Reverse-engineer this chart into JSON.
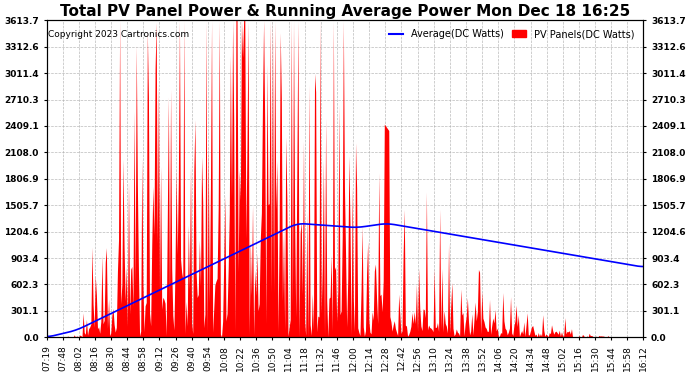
{
  "title": "Total PV Panel Power & Running Average Power Mon Dec 18 16:25",
  "copyright": "Copyright 2023 Cartronics.com",
  "legend_avg": "Average(DC Watts)",
  "legend_pv": "PV Panels(DC Watts)",
  "yticks": [
    0.0,
    301.1,
    602.3,
    903.4,
    1204.6,
    1505.7,
    1806.9,
    2108.0,
    2409.1,
    2710.3,
    3011.4,
    3312.6,
    3613.7
  ],
  "ymax": 3613.7,
  "bg_color": "#ffffff",
  "plot_bg": "#ffffff",
  "pv_color": "#ff0000",
  "avg_color": "#0000ff",
  "xtick_labels": [
    "07:19",
    "07:48",
    "08:02",
    "08:16",
    "08:30",
    "08:44",
    "08:58",
    "09:12",
    "09:26",
    "09:40",
    "09:54",
    "10:08",
    "10:22",
    "10:36",
    "10:50",
    "11:04",
    "11:18",
    "11:32",
    "11:46",
    "12:00",
    "12:14",
    "12:28",
    "12:42",
    "12:56",
    "13:10",
    "13:24",
    "13:38",
    "13:52",
    "14:06",
    "14:20",
    "14:34",
    "14:48",
    "15:02",
    "15:16",
    "15:30",
    "15:44",
    "15:58",
    "16:12"
  ],
  "title_fontsize": 11,
  "axis_fontsize": 6.5,
  "copyright_fontsize": 6.5,
  "grid_color": "#aaaaaa",
  "n_samples": 540
}
